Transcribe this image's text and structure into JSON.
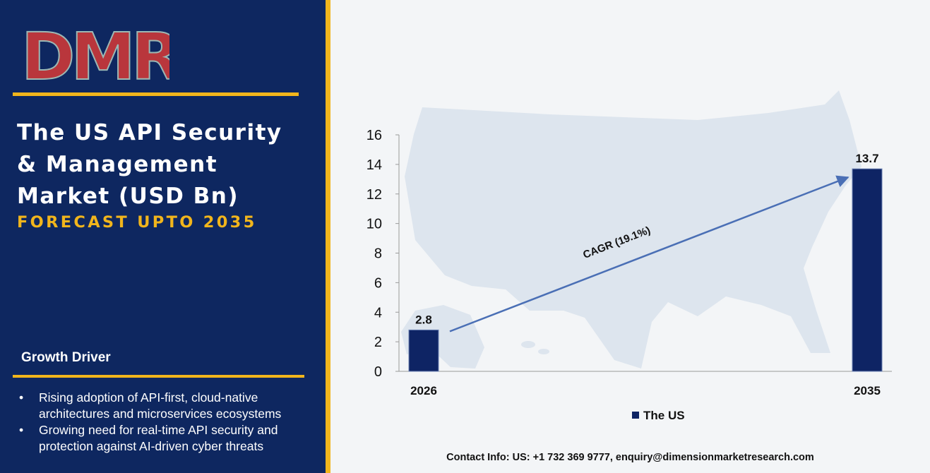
{
  "brand": {
    "logo_text": "DMR",
    "logo_color_dark": "#b9363c",
    "logo_color_light": "#9cb8b4"
  },
  "header": {
    "title_lines": [
      "The US API Security",
      "& Management",
      "Market (USD Bn)"
    ],
    "subtitle": "FORECAST UPTO 2035"
  },
  "growth_driver": {
    "title": "Growth Driver",
    "items": [
      "Rising adoption of API-first, cloud-native architectures and microservices ecosystems",
      "Growing need for real-time API security and protection against AI-driven cyber threats"
    ]
  },
  "chart_data": {
    "type": "bar",
    "categories": [
      "2026",
      "2035"
    ],
    "series": [
      {
        "name": "The US",
        "values": [
          2.8,
          13.7
        ],
        "color": "#0e2464"
      }
    ],
    "data_labels": [
      "2.8",
      "13.7"
    ],
    "ylim": [
      0,
      16
    ],
    "yticks": [
      0,
      2,
      4,
      6,
      8,
      10,
      12,
      14,
      16
    ],
    "grid": false,
    "legend": "bottom",
    "annotation": "CAGR (19.1%)",
    "colors": {
      "bar": "#0e2464",
      "arrow": "#4a6fb5",
      "background_map": "#dde5ee"
    }
  },
  "footer": {
    "contact_label": "Contact Info:",
    "contact_text": "US: +1 732 369 9777, enquiry@dimensionmarketresearch.com"
  },
  "colors": {
    "navy": "#0e2760",
    "gold": "#f1b51c"
  }
}
